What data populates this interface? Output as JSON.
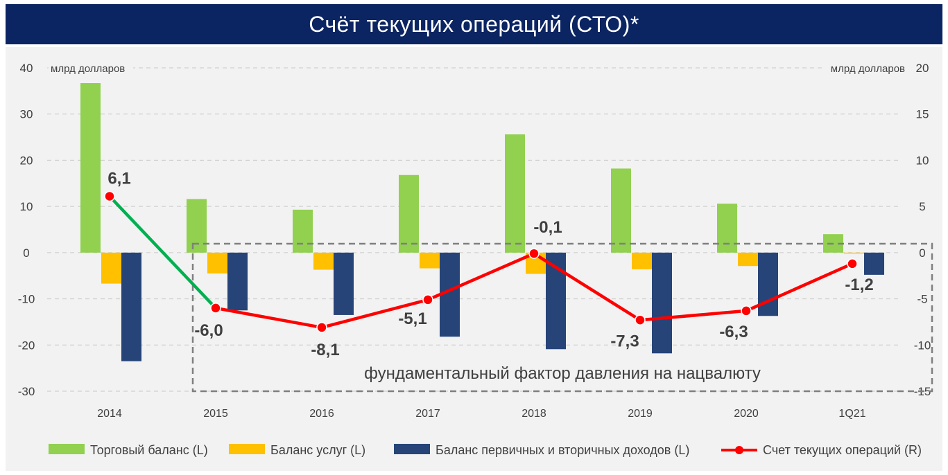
{
  "header": {
    "title": "Счёт текущих операций (СТО)*"
  },
  "chart_data": {
    "type": "bar",
    "categories": [
      "2014",
      "2015",
      "2016",
      "2017",
      "2018",
      "2019",
      "2020",
      "1Q21"
    ],
    "left_axis": {
      "unit_label": "млрд долларов",
      "range": [
        -30,
        40
      ],
      "ticks": [
        "40",
        "30",
        "20",
        "10",
        "0",
        "-10",
        "-20",
        "-30"
      ]
    },
    "right_axis": {
      "unit_label": "млрд долларов",
      "range": [
        -15,
        20
      ],
      "ticks": [
        "20",
        "15",
        "10",
        "5",
        "0",
        "-5",
        "-10",
        "-15"
      ]
    },
    "grid": true,
    "series": [
      {
        "name": "Торговый баланс (L)",
        "type": "bar",
        "axis": "left",
        "color": "#92d050",
        "values": [
          36.7,
          11.6,
          9.3,
          16.8,
          25.6,
          18.2,
          10.6,
          4.0
        ]
      },
      {
        "name": "Баланс услуг (L)",
        "type": "bar",
        "axis": "left",
        "color": "#ffc000",
        "values": [
          -6.7,
          -4.5,
          -3.7,
          -3.4,
          -4.6,
          -3.6,
          -2.9,
          -0.2
        ]
      },
      {
        "name": "Баланс первичных и вторичных доходов (L)",
        "type": "bar",
        "axis": "left",
        "color": "#264478",
        "values": [
          -23.5,
          -12.5,
          -13.5,
          -18.2,
          -20.9,
          -21.8,
          -13.7,
          -4.8
        ]
      },
      {
        "name": "Счет текущих операций (R)",
        "type": "line",
        "axis": "right",
        "color": "#ff0000",
        "values": [
          6.1,
          -6.0,
          -8.1,
          -5.1,
          -0.1,
          -7.3,
          -6.3,
          -1.2
        ],
        "labels": [
          "6,1",
          "-6,0",
          "-8,1",
          "-5,1",
          "-0,1",
          "-7,3",
          "-6,3",
          "-1,2"
        ],
        "first_segment_color": "#00b050"
      }
    ],
    "annotation": {
      "text": "фундаментальный фактор давления на нацвалюту",
      "from": "2015",
      "to": "1Q21"
    },
    "legend_position": "bottom"
  }
}
